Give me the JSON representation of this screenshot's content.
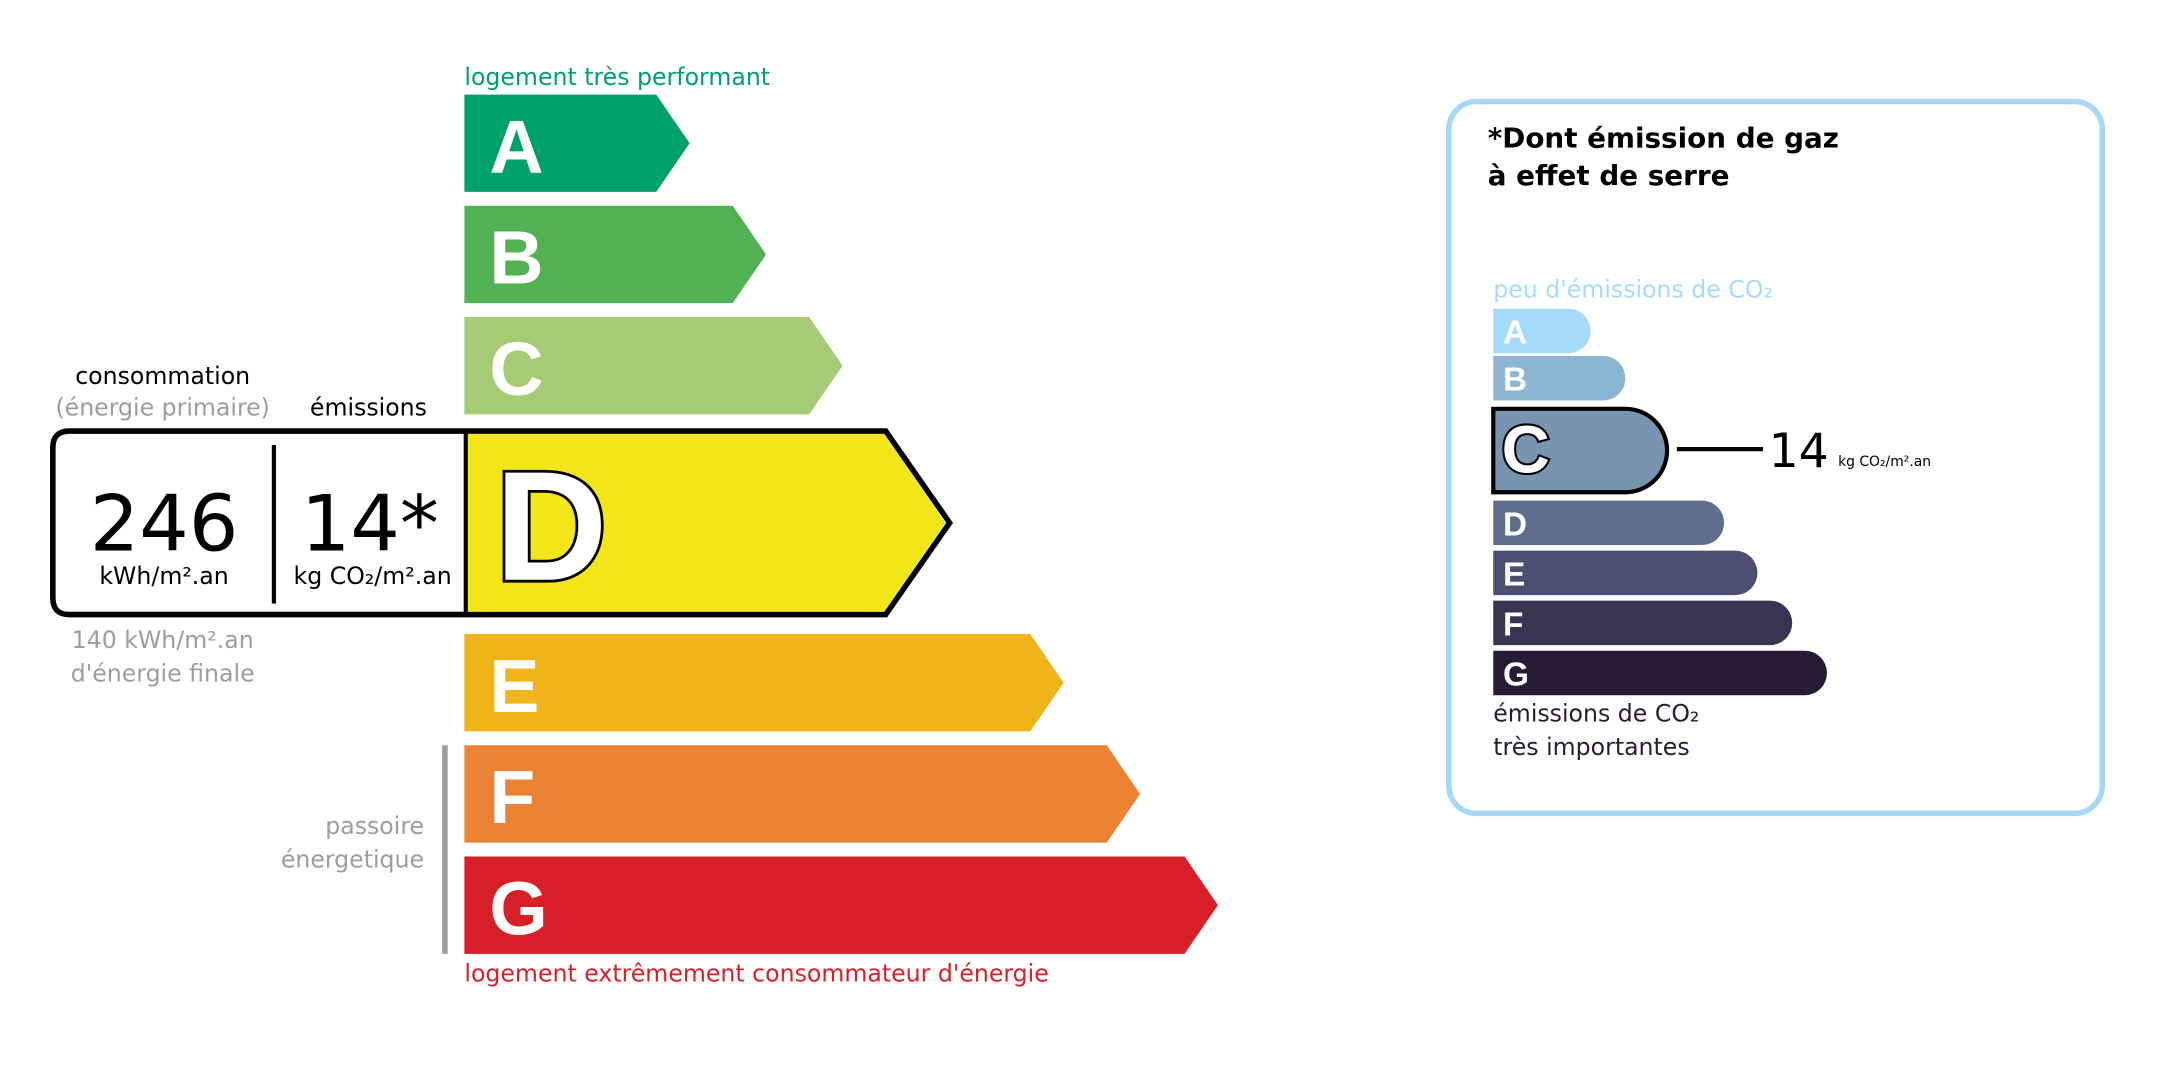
{
  "energy_label": {
    "top_caption": "logement très performant",
    "bottom_caption": "logement extrêmement consommateur d'énergie",
    "passoire_line1": "passoire",
    "passoire_line2": "énergetique",
    "current_class": "D",
    "classes": [
      {
        "letter": "A",
        "color": "#00a06c"
      },
      {
        "letter": "B",
        "color": "#52b153"
      },
      {
        "letter": "C",
        "color": "#a5cc74"
      },
      {
        "letter": "D",
        "color": "#f2e61b"
      },
      {
        "letter": "E",
        "color": "#efb41a"
      },
      {
        "letter": "F",
        "color": "#eb8234"
      },
      {
        "letter": "G",
        "color": "#d61f26"
      }
    ],
    "consumption_header": "consommation",
    "consumption_subheader": "(énergie primaire)",
    "emissions_header": "émissions",
    "consumption_value": "246",
    "consumption_unit": "kWh/m².an",
    "emissions_value": "14*",
    "emissions_unit": "kg CO₂/m².an",
    "final_energy_line1": "140 kWh/m².an",
    "final_energy_line2": "d'énergie finale"
  },
  "ghg_panel": {
    "title_line1": "*Dont émission de gaz",
    "title_line2": "à effet de serre",
    "top_caption": "peu d'émissions de CO₂",
    "bottom_caption_line1": "émissions de CO₂",
    "bottom_caption_line2": "très importantes",
    "current_class": "C",
    "value": "14",
    "unit": "kg CO₂/m².an",
    "border_color": "#a6d8f5",
    "classes": [
      {
        "letter": "A",
        "color": "#a4dbf8"
      },
      {
        "letter": "B",
        "color": "#8cb4d3"
      },
      {
        "letter": "C",
        "color": "#7794b1"
      },
      {
        "letter": "D",
        "color": "#5f6d8d"
      },
      {
        "letter": "E",
        "color": "#4b5070"
      },
      {
        "letter": "F",
        "color": "#373552"
      },
      {
        "letter": "G",
        "color": "#281b35"
      }
    ]
  }
}
